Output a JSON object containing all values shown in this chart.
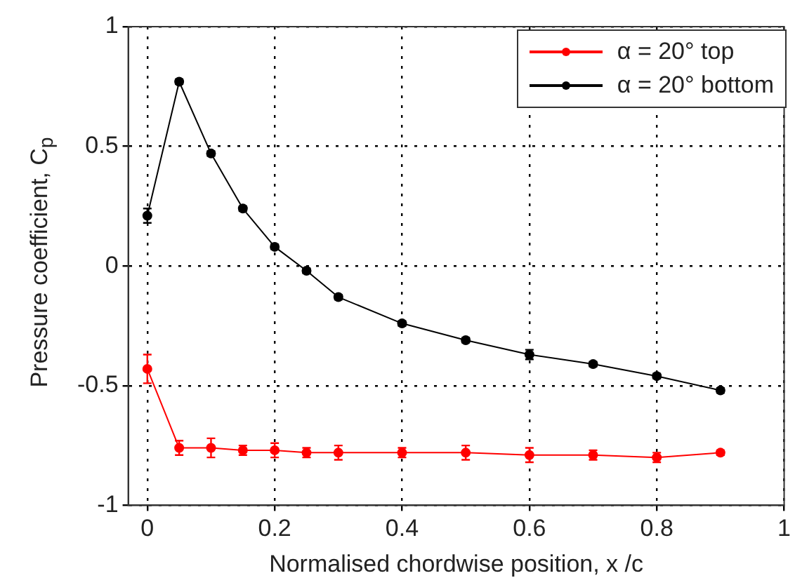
{
  "chart_data": {
    "type": "line",
    "xlabel": "Normalised chordwise position, x /c",
    "ylabel": "Pressure coefficient, C$_{p}$",
    "xlim": [
      -0.03,
      1
    ],
    "xticks": [
      0,
      0.2,
      0.4,
      0.6,
      0.8,
      1
    ],
    "ylim": [
      -1,
      1
    ],
    "yticks": [
      -1,
      -0.5,
      0,
      0.5,
      1
    ],
    "grid": true,
    "line_style": "solid",
    "marker": "circle",
    "legend": "top right",
    "x": [
      0,
      0.05,
      0.1,
      0.15,
      0.2,
      0.25,
      0.3,
      0.4,
      0.5,
      0.6,
      0.7,
      0.8,
      0.9
    ],
    "series": [
      {
        "name": "α = 20° top",
        "color": "#ff0000",
        "values": [
          -0.43,
          -0.76,
          -0.76,
          -0.77,
          -0.77,
          -0.78,
          -0.78,
          -0.78,
          -0.78,
          -0.79,
          -0.79,
          -0.8,
          -0.78
        ],
        "errors": [
          0.06,
          0.03,
          0.04,
          0.02,
          0.03,
          0.02,
          0.03,
          0.02,
          0.03,
          0.03,
          0.02,
          0.02,
          0.01
        ]
      },
      {
        "name": "α = 20° bottom",
        "color": "#000000",
        "values": [
          0.21,
          0.77,
          0.47,
          0.24,
          0.08,
          -0.02,
          -0.13,
          -0.24,
          -0.31,
          -0.37,
          -0.41,
          -0.46,
          -0.52
        ],
        "errors": [
          0.03,
          0.01,
          0.01,
          0.01,
          0.01,
          0.01,
          0.01,
          0.01,
          0.01,
          0.02,
          0.01,
          0.01,
          0.01
        ]
      }
    ]
  }
}
